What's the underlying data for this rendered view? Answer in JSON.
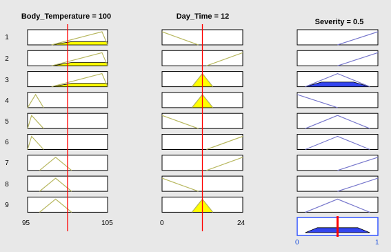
{
  "window": {
    "background": "#e8e8e8"
  },
  "columns": [
    {
      "title": "Body_Temperature = 100",
      "axis_min": "95",
      "axis_max": "105",
      "input_value": 100,
      "kind": "input"
    },
    {
      "title": "Day_Time = 12",
      "axis_min": "0",
      "axis_max": "24",
      "input_value": 12,
      "kind": "input"
    },
    {
      "title": "Severity = 0.5",
      "axis_min": "0",
      "axis_max": "1",
      "output_value": 0.5,
      "kind": "output"
    }
  ],
  "rules": [
    "1",
    "2",
    "3",
    "4",
    "5",
    "6",
    "7",
    "8",
    "9"
  ],
  "colors": {
    "input_mf_line": "#b8b860",
    "input_fill": "#ffff00",
    "output_mf_line": "#7777cc",
    "output_fill": "#3344ee",
    "index_line": "#ff0000",
    "aggregate_border": "#3355ff"
  }
}
